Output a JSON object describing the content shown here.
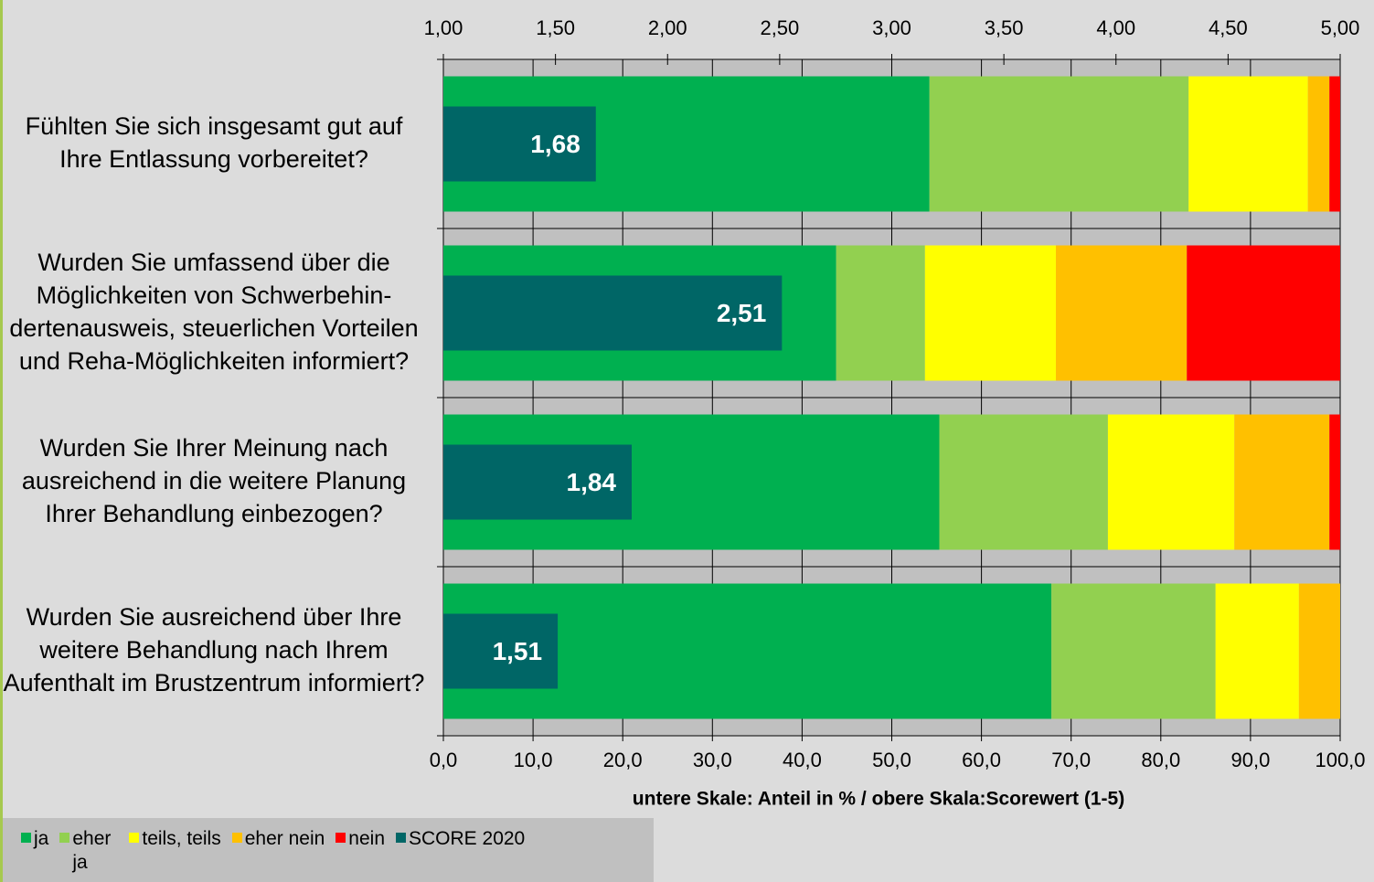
{
  "chart_data": {
    "type": "stacked-barh",
    "categories": [
      "Fühlten Sie sich insgesamt gut auf Ihre Entlassung vorbereitet?",
      "Wurden Sie umfassend über die Möglichkeiten von Schwerbehin-dertenausweis, steuerlichen Vorteilen und Reha-Möglichkeiten informiert?",
      "Wurden Sie Ihrer Meinung nach ausreichend in die weitere Planung Ihrer Behandlung einbezogen?",
      "Wurden Sie ausreichend über Ihre weitere Behandlung nach Ihrem Aufenthalt im Brustzentrum informiert?"
    ],
    "series": [
      {
        "name": "ja",
        "color": "#00b050",
        "values": [
          54.2,
          43.8,
          55.3,
          67.8
        ]
      },
      {
        "name": "eher ja",
        "color": "#92d050",
        "values": [
          28.9,
          9.9,
          18.8,
          18.3
        ]
      },
      {
        "name": "teils, teils",
        "color": "#ffff00",
        "values": [
          13.3,
          14.6,
          14.1,
          9.3
        ]
      },
      {
        "name": "eher nein",
        "color": "#ffc000",
        "values": [
          2.4,
          14.6,
          10.6,
          4.6
        ]
      },
      {
        "name": "nein",
        "color": "#ff0000",
        "values": [
          1.2,
          17.1,
          1.2,
          0
        ]
      },
      {
        "name": "SCORE 2020",
        "color": "#006666",
        "axis": "x2",
        "values": [
          1.68,
          2.51,
          1.84,
          1.51
        ],
        "value_labels": [
          "1,68",
          "2,51",
          "1,84",
          "1,51"
        ]
      }
    ],
    "xlabel": "untere Skale: Anteil in % / obere Skala:Scorewert (1-5)",
    "xlim": [
      0,
      100
    ],
    "xticks": [
      {
        "value": 0,
        "label": "0,0"
      },
      {
        "value": 10,
        "label": "10,0"
      },
      {
        "value": 20,
        "label": "20,0"
      },
      {
        "value": 30,
        "label": "30,0"
      },
      {
        "value": 40,
        "label": "40,0"
      },
      {
        "value": 50,
        "label": "50,0"
      },
      {
        "value": 60,
        "label": "60,0"
      },
      {
        "value": 70,
        "label": "70,0"
      },
      {
        "value": 80,
        "label": "80,0"
      },
      {
        "value": 90,
        "label": "90,0"
      },
      {
        "value": 100,
        "label": "100,0"
      }
    ],
    "x2lim": [
      1,
      5
    ],
    "x2ticks": [
      {
        "value": 1,
        "label": "1,00"
      },
      {
        "value": 1.5,
        "label": "1,50"
      },
      {
        "value": 2,
        "label": "2,00"
      },
      {
        "value": 2.5,
        "label": "2,50"
      },
      {
        "value": 3,
        "label": "3,00"
      },
      {
        "value": 3.5,
        "label": "3,50"
      },
      {
        "value": 4,
        "label": "4,00"
      },
      {
        "value": 4.5,
        "label": "4,50"
      },
      {
        "value": 5,
        "label": "5,00"
      }
    ],
    "grid": true,
    "legend": "bottom-left"
  }
}
